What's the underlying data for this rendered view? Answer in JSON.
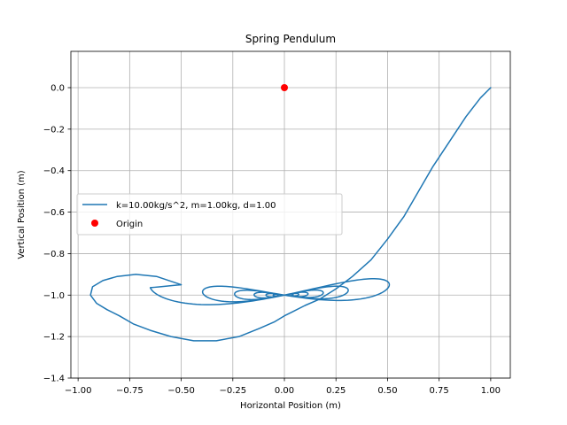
{
  "chart_data": {
    "type": "line",
    "title": "Spring Pendulum",
    "xlabel": "Horizontal Position (m)",
    "ylabel": "Vertical Position (m)",
    "xlim": [
      -1.035,
      1.095
    ],
    "ylim": [
      -1.4,
      0.175
    ],
    "xticks": [
      -1.0,
      -0.75,
      -0.5,
      -0.25,
      0.0,
      0.25,
      0.5,
      0.75,
      1.0
    ],
    "xtick_labels": [
      "−1.00",
      "−0.75",
      "−0.50",
      "−0.25",
      "0.00",
      "0.25",
      "0.50",
      "0.75",
      "1.00"
    ],
    "yticks": [
      -1.4,
      -1.2,
      -1.0,
      -0.8,
      -0.6,
      -0.4,
      -0.2,
      0.0
    ],
    "ytick_labels": [
      "−1.4",
      "−1.2",
      "−1.0",
      "−0.8",
      "−0.6",
      "−0.4",
      "−0.2",
      "0.0"
    ],
    "grid": true,
    "legend_position": "center-left",
    "series": [
      {
        "name": "k=10.00kg/s^2, m=1.00kg, d=1.00",
        "kind": "line",
        "color": "#1f77b4",
        "damped_orbit": {
          "x0": 0.0,
          "y0": -1.0,
          "ax": 0.65,
          "ay": 0.06,
          "bend": 0.06,
          "decay": 0.25,
          "wx": 3.1623,
          "wy": 6.3246,
          "t_max": 12.0
        }
      },
      {
        "name": "Origin",
        "kind": "marker",
        "color": "#ff0000",
        "x": [
          0.0
        ],
        "y": [
          0.0
        ]
      }
    ],
    "initial_swing": {
      "x": [
        1.0,
        0.95,
        0.88,
        0.8,
        0.72,
        0.65,
        0.58,
        0.5,
        0.42,
        0.33,
        0.25,
        0.17,
        0.1,
        0.04,
        0.0,
        -0.05,
        -0.12,
        -0.22,
        -0.33,
        -0.44,
        -0.55,
        -0.65,
        -0.73,
        -0.8,
        -0.86,
        -0.91,
        -0.94,
        -0.93,
        -0.88,
        -0.81,
        -0.72,
        -0.62,
        -0.5
      ],
      "y": [
        0.0,
        -0.05,
        -0.14,
        -0.26,
        -0.38,
        -0.5,
        -0.62,
        -0.73,
        -0.83,
        -0.91,
        -0.97,
        -1.02,
        -1.05,
        -1.08,
        -1.1,
        -1.13,
        -1.16,
        -1.2,
        -1.22,
        -1.22,
        -1.2,
        -1.17,
        -1.14,
        -1.1,
        -1.07,
        -1.04,
        -1.0,
        -0.96,
        -0.93,
        -0.91,
        -0.9,
        -0.91,
        -0.95
      ]
    }
  }
}
